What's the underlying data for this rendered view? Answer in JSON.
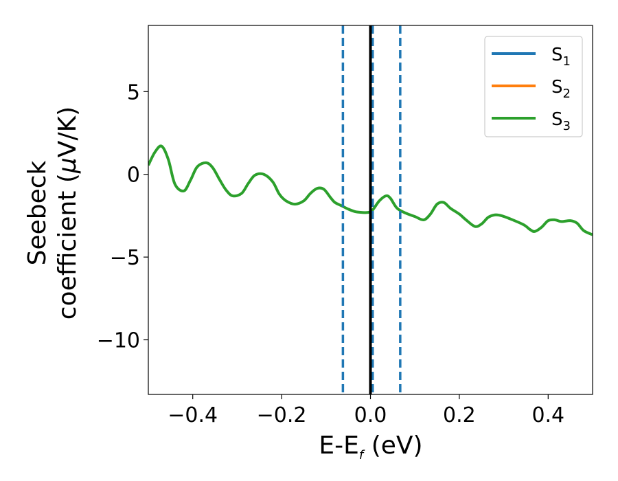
{
  "chart_data": {
    "type": "line",
    "xlabel_main": "E-E",
    "xlabel_sub": "f",
    "xlabel_unit": " (eV)",
    "ylabel_line1": "Seebeck",
    "ylabel_line2": "coefficient  (",
    "ylabel_mu": "μ",
    "ylabel_unit": "V/K)",
    "xlim": [
      -0.5,
      0.5
    ],
    "ylim": [
      -13.3,
      9.0
    ],
    "x_ticks": [
      -0.4,
      -0.2,
      0.0,
      0.2,
      0.4
    ],
    "x_tick_labels": [
      "−0.4",
      "−0.2",
      "0.0",
      "0.2",
      "0.4"
    ],
    "y_ticks": [
      5,
      0,
      -5,
      -10
    ],
    "y_tick_labels": [
      "5",
      "0",
      "−5",
      "−10"
    ],
    "legend_position": "top-right",
    "colors": {
      "S1": "#1f77b4",
      "S2": "#ff7f0e",
      "S3": "#2ca02c",
      "fermi_line": "#000000",
      "dashed": "#1f77b4"
    },
    "vertical_lines": {
      "solid": [
        0.0
      ],
      "dashed": [
        -0.062,
        0.005,
        0.067
      ]
    },
    "series": [
      {
        "name": "S",
        "sub": "1",
        "color": "#1f77b4",
        "visible": false
      },
      {
        "name": "S",
        "sub": "2",
        "color": "#ff7f0e",
        "visible": false
      },
      {
        "name": "S",
        "sub": "3",
        "color": "#2ca02c",
        "visible": true,
        "x": [
          -0.5,
          -0.485,
          -0.47,
          -0.455,
          -0.44,
          -0.42,
          -0.405,
          -0.39,
          -0.37,
          -0.355,
          -0.34,
          -0.325,
          -0.31,
          -0.29,
          -0.275,
          -0.26,
          -0.24,
          -0.22,
          -0.205,
          -0.19,
          -0.17,
          -0.15,
          -0.135,
          -0.12,
          -0.105,
          -0.09,
          -0.08,
          -0.065,
          -0.05,
          -0.035,
          -0.02,
          -0.005,
          0.005,
          0.02,
          0.035,
          0.045,
          0.06,
          0.08,
          0.1,
          0.12,
          0.135,
          0.15,
          0.165,
          0.18,
          0.2,
          0.215,
          0.235,
          0.25,
          0.265,
          0.28,
          0.295,
          0.32,
          0.345,
          0.36,
          0.37,
          0.385,
          0.4,
          0.415,
          0.43,
          0.45,
          0.465,
          0.48,
          0.5
        ],
        "y": [
          0.55,
          1.35,
          1.7,
          0.9,
          -0.6,
          -1.0,
          -0.35,
          0.45,
          0.7,
          0.4,
          -0.3,
          -0.95,
          -1.3,
          -1.15,
          -0.55,
          -0.05,
          0.0,
          -0.45,
          -1.2,
          -1.6,
          -1.8,
          -1.6,
          -1.15,
          -0.85,
          -0.9,
          -1.4,
          -1.7,
          -1.9,
          -2.1,
          -2.25,
          -2.3,
          -2.3,
          -2.15,
          -1.6,
          -1.3,
          -1.45,
          -2.05,
          -2.35,
          -2.55,
          -2.75,
          -2.4,
          -1.8,
          -1.7,
          -2.05,
          -2.4,
          -2.75,
          -3.15,
          -3.0,
          -2.6,
          -2.45,
          -2.5,
          -2.75,
          -3.05,
          -3.35,
          -3.45,
          -3.2,
          -2.8,
          -2.75,
          -2.85,
          -2.8,
          -2.95,
          -3.4,
          -3.65
        ]
      }
    ]
  }
}
